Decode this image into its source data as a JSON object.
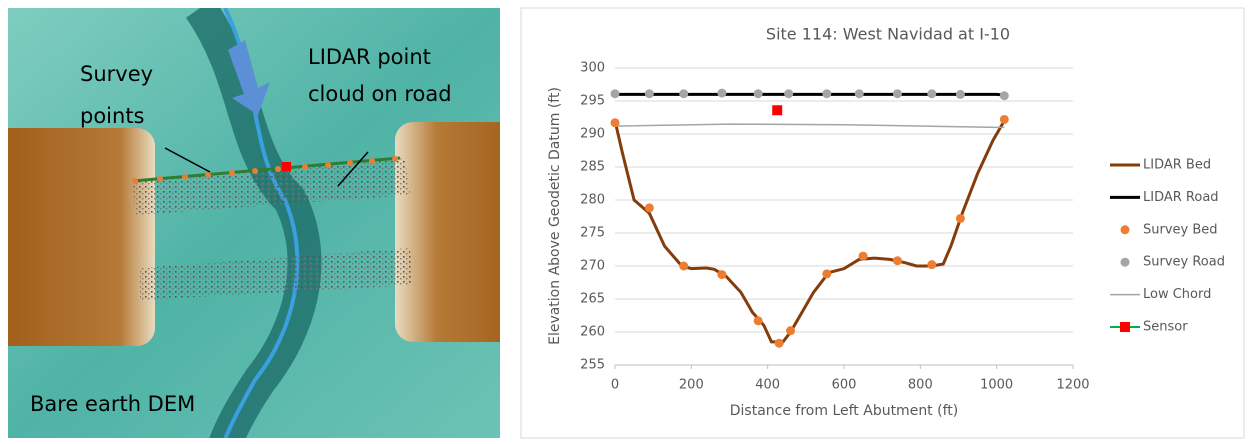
{
  "map": {
    "labels": [
      {
        "lines": [
          "Survey",
          "points"
        ]
      },
      {
        "lines": [
          "LIDAR point",
          "cloud on road"
        ]
      },
      {
        "lines": [
          "Bare earth DEM"
        ]
      }
    ]
  },
  "chart_data": {
    "type": "scatter",
    "title": "Site 114: West Navidad at I-10",
    "x_label": "Distance from Left Abutment  (ft)",
    "y_label": "Elevation Above Geodetic Datum  (ft)",
    "xlim": [
      0,
      1200
    ],
    "xticks": [
      0,
      200,
      400,
      600,
      800,
      1000,
      1200
    ],
    "ylim": [
      255,
      300
    ],
    "yticks": [
      255,
      260,
      265,
      270,
      275,
      280,
      285,
      290,
      295,
      300
    ],
    "grid": true,
    "legend": "right",
    "series": [
      {
        "name": "LIDAR Bed",
        "mode": "line",
        "color": "#843c0c",
        "x": [
          0,
          20,
          50,
          90,
          130,
          160,
          175,
          200,
          240,
          260,
          290,
          330,
          360,
          390,
          410,
          440,
          460,
          490,
          520,
          560,
          600,
          640,
          680,
          720,
          760,
          790,
          830,
          860,
          880,
          910,
          950,
          990,
          1020
        ],
        "values": [
          292,
          287,
          280,
          278,
          273,
          271,
          270,
          269.6,
          269.7,
          269.5,
          268.5,
          266,
          263,
          261,
          258.5,
          258.5,
          260,
          263,
          266,
          269,
          269.6,
          271,
          271.2,
          271,
          270.5,
          270,
          270,
          270.3,
          273,
          278,
          284,
          289,
          292
        ]
      },
      {
        "name": "LIDAR Road",
        "mode": "line",
        "color": "#000000",
        "x": [
          0,
          500,
          1000,
          1020
        ],
        "values": [
          296,
          296,
          296,
          295.9
        ]
      },
      {
        "name": "Survey Bed",
        "mode": "markers",
        "color": "#ed7d31",
        "x": [
          0,
          90,
          180,
          280,
          375,
          430,
          460,
          555,
          650,
          740,
          830,
          905,
          1020
        ],
        "values": [
          291.7,
          278.8,
          270,
          268.7,
          261.7,
          258.3,
          260.2,
          268.8,
          271.5,
          270.8,
          270.2,
          277.2,
          292.2
        ]
      },
      {
        "name": "Survey Road",
        "mode": "markers",
        "color": "#a5a5a5",
        "x": [
          0,
          90,
          180,
          280,
          375,
          455,
          555,
          640,
          740,
          830,
          905,
          1020
        ],
        "values": [
          296.1,
          296.1,
          296.1,
          296.2,
          296.1,
          296.1,
          296.1,
          296.1,
          296.1,
          296.1,
          296,
          295.8
        ]
      },
      {
        "name": "Low Chord",
        "mode": "line",
        "color": "#a5a5a5",
        "x": [
          0,
          300,
          600,
          1000,
          1020
        ],
        "values": [
          291.2,
          291.5,
          291.4,
          291,
          291
        ]
      },
      {
        "name": "Sensor",
        "mode": "square",
        "color": "#ff0000",
        "legend_line_color": "#00b050",
        "x": [
          425
        ],
        "values": [
          293.6
        ]
      }
    ]
  }
}
